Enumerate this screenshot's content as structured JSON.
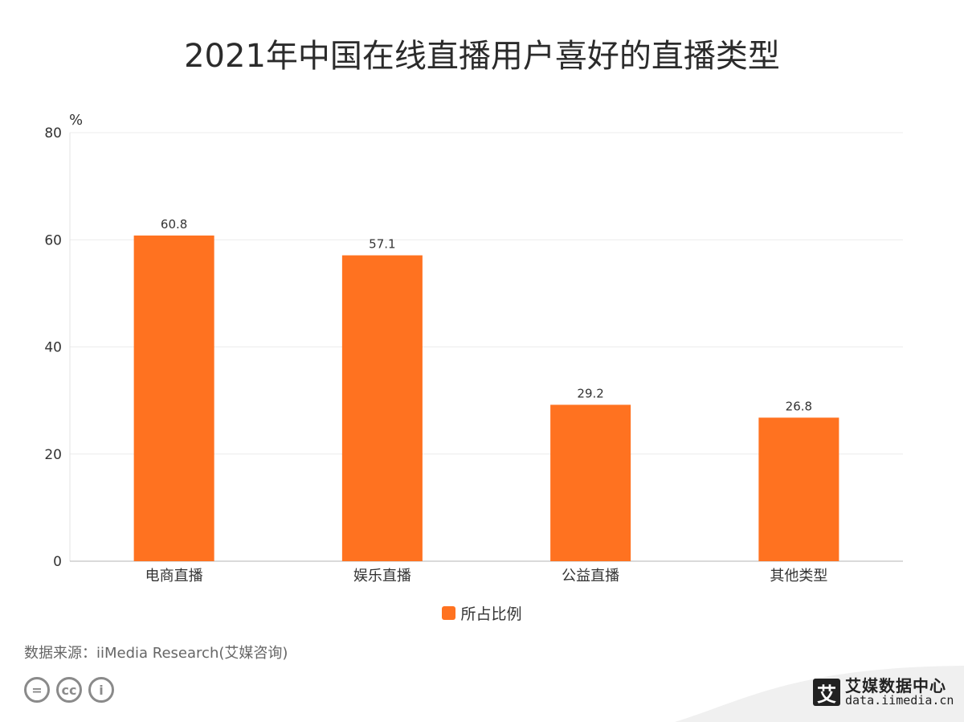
{
  "title": "2021年中国在线直播用户喜好的直播类型",
  "chart_data": {
    "type": "bar",
    "title": "2021年中国在线直播用户喜好的直播类型",
    "ylabel": "%",
    "xlabel": "",
    "categories": [
      "电商直播",
      "娱乐直播",
      "公益直播",
      "其他类型"
    ],
    "series": [
      {
        "name": "所占比例",
        "values": [
          60.8,
          57.1,
          29.2,
          26.8
        ]
      }
    ],
    "ylim": [
      0,
      80
    ],
    "yticks": [
      "0",
      "20",
      "40",
      "60",
      "80"
    ],
    "grid": true,
    "legend": "bottom-center",
    "bar_color": "#FF7220"
  },
  "legend_label": "所占比例",
  "source": "数据来源：iiMedia Research(艾媒咨询)",
  "brand": {
    "logo_char": "艾",
    "name": "艾媒数据中心",
    "url": "data.iimedia.cn"
  },
  "license_icons": [
    "=",
    "cc",
    "i"
  ]
}
